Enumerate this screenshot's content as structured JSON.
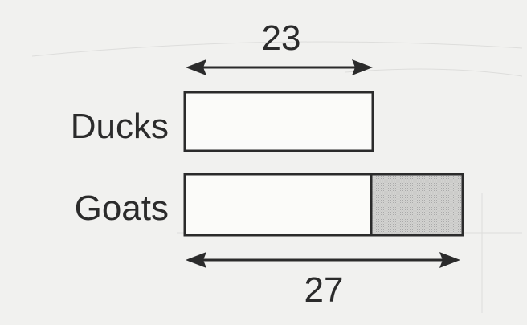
{
  "ducks": {
    "label": "Ducks",
    "value": "23"
  },
  "goats": {
    "label": "Goats",
    "value": "27"
  },
  "colors": {
    "background": "#f1f1ef",
    "ink": "#2b2b2b",
    "bar_fill": "#fbfbf9",
    "extra_fill": "#c9c9c9"
  }
}
